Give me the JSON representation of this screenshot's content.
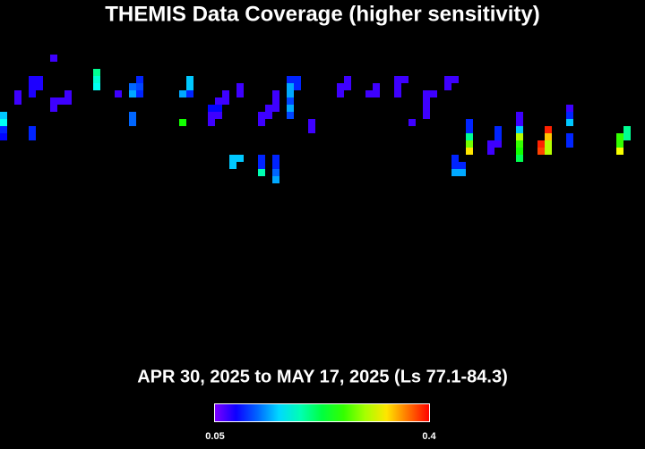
{
  "chart_data": {
    "type": "heatmap",
    "title": "THEMIS Data Coverage (higher sensitivity)",
    "subtitle": "APR 30, 2025 to MAY 17, 2025 (Ls 77.1-84.3)",
    "xlim": [
      0,
      90
    ],
    "ylim": [
      0,
      45
    ],
    "clim": [
      0.05,
      0.4
    ],
    "colorbar_ticks": [
      0.05,
      0.4
    ],
    "x": [
      7,
      2,
      2,
      4,
      5,
      4,
      5,
      4,
      0,
      0,
      0,
      0,
      4,
      4,
      7,
      8,
      9,
      9,
      7,
      13,
      13,
      13,
      16,
      18,
      18,
      19,
      19,
      19,
      18,
      18,
      25,
      26,
      26,
      26,
      25,
      33,
      33,
      31,
      30,
      31,
      30,
      29,
      29,
      30,
      29,
      38,
      38,
      37,
      38,
      36,
      37,
      36,
      40,
      41,
      41,
      40,
      40,
      40,
      40,
      40,
      43,
      43,
      32,
      33,
      32,
      36,
      36,
      36,
      38,
      38,
      38,
      38,
      48,
      47,
      48,
      47,
      51,
      52,
      52,
      55,
      56,
      55,
      55,
      57,
      59,
      60,
      59,
      59,
      59,
      62,
      63,
      62,
      63,
      63,
      63,
      64,
      64,
      65,
      65,
      65,
      65,
      65,
      68,
      68,
      69,
      69,
      69,
      72,
      72,
      72,
      72,
      72,
      72,
      72,
      76,
      76,
      76,
      75,
      75,
      76,
      79,
      79,
      79,
      79,
      79,
      87,
      87,
      86,
      86,
      86
    ],
    "y": [
      7,
      12,
      13,
      10,
      10,
      11,
      11,
      12,
      15,
      16,
      17,
      18,
      17,
      18,
      13,
      13,
      12,
      13,
      14,
      9,
      10,
      11,
      12,
      11,
      12,
      10,
      11,
      12,
      15,
      16,
      12,
      10,
      11,
      12,
      16,
      11,
      12,
      12,
      13,
      13,
      14,
      14,
      15,
      15,
      16,
      12,
      13,
      14,
      14,
      15,
      15,
      16,
      10,
      10,
      11,
      11,
      12,
      13,
      14,
      15,
      16,
      17,
      21,
      21,
      22,
      21,
      22,
      23,
      21,
      22,
      23,
      24,
      10,
      11,
      11,
      12,
      12,
      12,
      11,
      10,
      10,
      11,
      12,
      16,
      12,
      12,
      13,
      14,
      15,
      10,
      10,
      11,
      21,
      22,
      23,
      22,
      23,
      16,
      17,
      18,
      19,
      20,
      19,
      20,
      17,
      18,
      19,
      15,
      16,
      17,
      18,
      19,
      20,
      21,
      17,
      18,
      19,
      19,
      20,
      20,
      14,
      15,
      16,
      18,
      19,
      17,
      18,
      18,
      19,
      20
    ],
    "values": [
      0.07,
      0.07,
      0.07,
      0.08,
      0.08,
      0.08,
      0.08,
      0.08,
      0.15,
      0.17,
      0.1,
      0.09,
      0.1,
      0.1,
      0.07,
      0.07,
      0.07,
      0.07,
      0.07,
      0.2,
      0.18,
      0.17,
      0.07,
      0.12,
      0.14,
      0.1,
      0.11,
      0.1,
      0.12,
      0.12,
      0.14,
      0.15,
      0.15,
      0.1,
      0.25,
      0.07,
      0.07,
      0.07,
      0.07,
      0.07,
      0.09,
      0.09,
      0.07,
      0.07,
      0.07,
      0.07,
      0.07,
      0.07,
      0.07,
      0.07,
      0.07,
      0.07,
      0.1,
      0.1,
      0.1,
      0.14,
      0.14,
      0.11,
      0.14,
      0.11,
      0.07,
      0.07,
      0.15,
      0.15,
      0.15,
      0.1,
      0.1,
      0.19,
      0.1,
      0.1,
      0.12,
      0.14,
      0.07,
      0.07,
      0.07,
      0.07,
      0.07,
      0.07,
      0.07,
      0.07,
      0.07,
      0.07,
      0.07,
      0.07,
      0.07,
      0.07,
      0.07,
      0.07,
      0.07,
      0.07,
      0.07,
      0.07,
      0.1,
      0.1,
      0.14,
      0.1,
      0.14,
      0.1,
      0.1,
      0.2,
      0.28,
      0.33,
      0.07,
      0.07,
      0.1,
      0.1,
      0.07,
      0.07,
      0.07,
      0.15,
      0.3,
      0.26,
      0.25,
      0.22,
      0.39,
      0.34,
      0.3,
      0.39,
      0.38,
      0.3,
      0.07,
      0.1,
      0.15,
      0.1,
      0.1,
      0.2,
      0.2,
      0.26,
      0.26,
      0.32
    ]
  }
}
